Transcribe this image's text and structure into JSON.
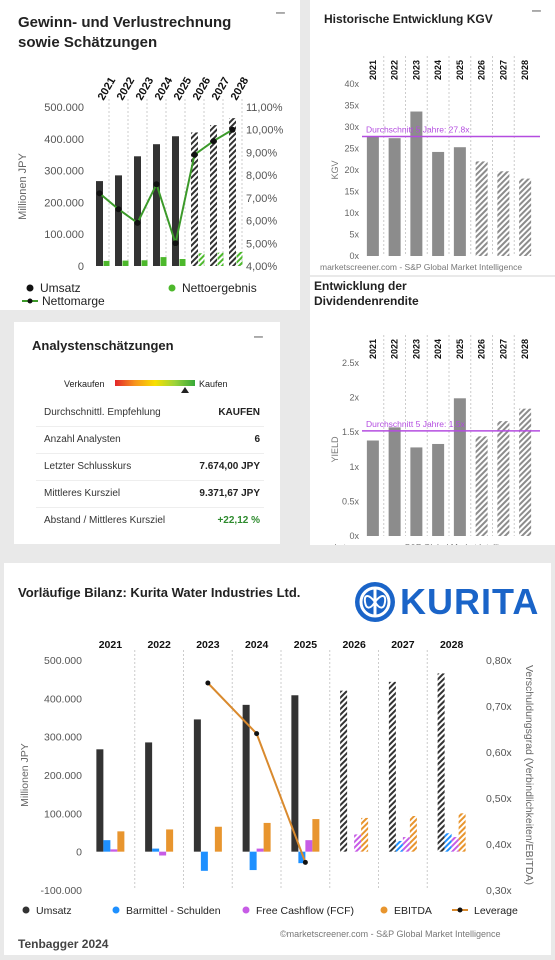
{
  "panel1": {
    "title_line1": "Gewinn- und Verlustrechnung",
    "title_line2": "sowie Schätzungen",
    "minimize": "–",
    "legend": {
      "umsatz": "Umsatz",
      "netto": "Nettoergebnis",
      "marge": "Nettomarge"
    }
  },
  "panel2": {
    "title": "Historische Entwicklung KGV",
    "minimize": "–",
    "source": "marketscreener.com - S&P Global Market Intelligence"
  },
  "panel3": {
    "title": "Analystenschätzungen",
    "minimize": "–",
    "gauge_left": "Verkaufen",
    "gauge_right": "Kaufen",
    "gauge_level": 0.87,
    "rows": [
      {
        "label": "Durchschnittl. Empfehlung",
        "value": "KAUFEN",
        "color": "#222222"
      },
      {
        "label": "Anzahl Analysten",
        "value": "6",
        "color": "#222222"
      },
      {
        "label": "Letzter Schlusskurs",
        "value": "7.674,00 JPY",
        "color": "#222222"
      },
      {
        "label": "Mittleres Kursziel",
        "value": "9.371,67 JPY",
        "color": "#222222"
      },
      {
        "label": "Abstand / Mittleres Kursziel",
        "value": "+22,12 %",
        "color": "#2e8b2e"
      }
    ]
  },
  "panel4": {
    "title_line1": "Entwicklung der",
    "title_line2": "Dividendenrendite",
    "source": "marketscreener.com - S&P Global Market Intelligence"
  },
  "panel5": {
    "title": "Vorläufige Bilanz: Kurita Water Industries Ltd.",
    "logo_text": "KURITA",
    "source": "©marketscreener.com - S&P Global Market Intelligence",
    "footer": "Tenbagger 2024",
    "legend": [
      "Umsatz",
      "Barmittel - Schulden",
      "Free Cashflow (FCF)",
      "EBITDA",
      "Leverage"
    ]
  },
  "colors": {
    "dark": "#333333",
    "green": "#4db82c",
    "line": "#3c9a2a",
    "gray": "#8c8c8c",
    "purple": "#b44de0",
    "blue": "#1e90ff",
    "violet": "#c75ce6",
    "orange": "#e8952e",
    "leverage": "#d98a2e",
    "logo": "#1a64c8"
  },
  "chart_data": [
    {
      "type": "bar",
      "title": "Gewinn- und Verlustrechnung sowie Schätzungen",
      "categories": [
        "2021",
        "2022",
        "2023",
        "2024",
        "2025",
        "2026",
        "2027",
        "2028"
      ],
      "estimate_from": "2026",
      "ylabel": "Millionen JPY",
      "ylim": [
        0,
        500000
      ],
      "yticks": [
        "0",
        "100.000",
        "200.000",
        "300.000",
        "400.000",
        "500.000"
      ],
      "y2lim": [
        4,
        11
      ],
      "y2ticks": [
        "4,00%",
        "5,00%",
        "6,00%",
        "7,00%",
        "8,00%",
        "9,00%",
        "10,00%",
        "11,00%"
      ],
      "series": [
        {
          "name": "Umsatz",
          "values": [
            267000,
            285000,
            345000,
            383000,
            408000,
            420000,
            443000,
            465000
          ]
        },
        {
          "name": "Nettoergebnis",
          "values": [
            16000,
            17000,
            18000,
            28000,
            22000,
            40000,
            42000,
            44000
          ]
        },
        {
          "name": "Nettomarge",
          "axis": "right",
          "values": [
            7.2,
            6.5,
            5.9,
            7.6,
            5.0,
            8.9,
            9.5,
            10.0
          ]
        }
      ],
      "legend_position": "bottom"
    },
    {
      "type": "bar",
      "title": "Historische Entwicklung KGV",
      "categories": [
        "2021",
        "2022",
        "2023",
        "2024",
        "2025",
        "2026",
        "2027",
        "2028"
      ],
      "estimate_from": "2026",
      "ylabel": "KGV",
      "ylim": [
        0,
        40
      ],
      "yticks": [
        "0x",
        "5x",
        "10x",
        "15x",
        "20x",
        "25x",
        "30x",
        "35x",
        "40x"
      ],
      "values": [
        27.9,
        27.4,
        33.6,
        24.2,
        25.3,
        22.0,
        19.7,
        18.0
      ],
      "average": {
        "label": "Durchschnitt 5 Jahre: 27.8x",
        "value": 27.8
      }
    },
    {
      "type": "bar",
      "title": "Entwicklung der Dividendenrendite",
      "categories": [
        "2021",
        "2022",
        "2023",
        "2024",
        "2025",
        "2026",
        "2027",
        "2028"
      ],
      "estimate_from": "2026",
      "ylabel": "YIELD",
      "ylim": [
        0,
        2.5
      ],
      "yticks": [
        "0x",
        "0.5x",
        "1x",
        "1.5x",
        "2x",
        "2.5x"
      ],
      "values": [
        1.38,
        1.57,
        1.28,
        1.33,
        1.99,
        1.44,
        1.66,
        1.84
      ],
      "average": {
        "label": "Durchschnitt 5 Jahre: 1.5x",
        "value": 1.52
      }
    },
    {
      "type": "bar",
      "title": "Vorläufige Bilanz: Kurita Water Industries Ltd.",
      "categories": [
        "2021",
        "2022",
        "2023",
        "2024",
        "2025",
        "2026",
        "2027",
        "2028"
      ],
      "estimate_from": "2026",
      "ylabel": "Millionen JPY",
      "ylim": [
        -100000,
        500000
      ],
      "yticks": [
        "-100.000",
        "0",
        "100.000",
        "200.000",
        "300.000",
        "400.000",
        "500.000"
      ],
      "y2label": "Verschuldungsgrad (Verbindlichkeiten/EBITDA)",
      "y2lim": [
        0.3,
        0.8
      ],
      "y2ticks": [
        "0,30x",
        "0,40x",
        "0,50x",
        "0,60x",
        "0,70x",
        "0,80x"
      ],
      "series": [
        {
          "name": "Umsatz",
          "values": [
            267000,
            285000,
            345000,
            383000,
            408000,
            420000,
            443000,
            465000
          ]
        },
        {
          "name": "Barmittel - Schulden",
          "values": [
            30000,
            8000,
            -50000,
            -48000,
            -30000,
            0,
            28000,
            48000
          ]
        },
        {
          "name": "Free Cashflow (FCF)",
          "values": [
            6000,
            -10000,
            0,
            8000,
            30000,
            45000,
            38000,
            38000
          ]
        },
        {
          "name": "EBITDA",
          "values": [
            53000,
            58000,
            65000,
            75000,
            85000,
            88000,
            93000,
            100000
          ]
        },
        {
          "name": "Leverage",
          "axis": "right",
          "values": [
            null,
            null,
            0.75,
            0.64,
            0.36,
            null,
            null,
            null
          ]
        }
      ],
      "legend_position": "bottom"
    }
  ]
}
